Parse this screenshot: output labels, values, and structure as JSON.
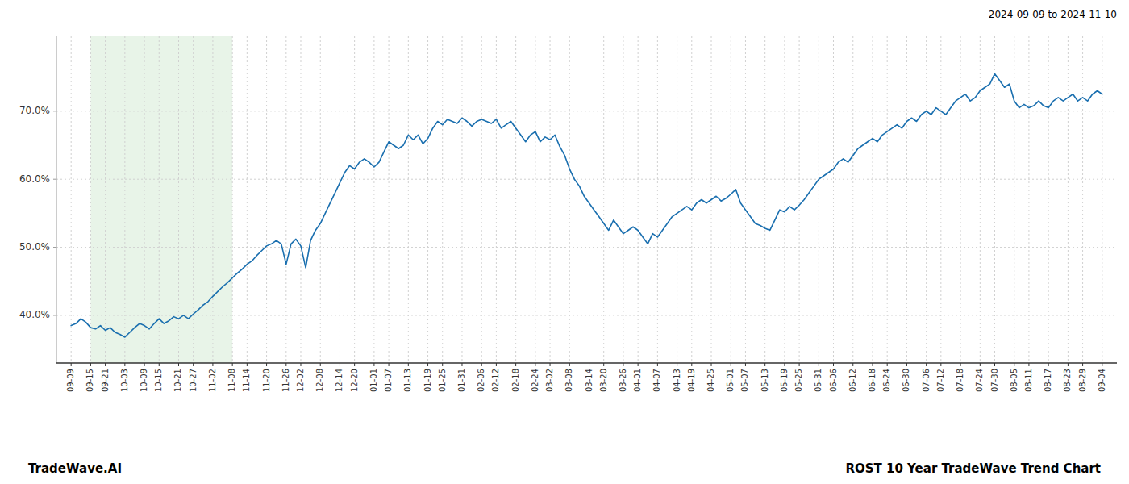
{
  "chart_data": {
    "type": "line",
    "subtitle": "2024-09-09 to 2024-11-10",
    "annotations": [
      "TradeWave.AI",
      "ROST 10 Year TradeWave Trend Chart"
    ],
    "color": "#1a6faf",
    "grid": true,
    "ylim": [
      33.0,
      81.0
    ],
    "yticks": [
      {
        "value": 40.0,
        "label": "40.0%"
      },
      {
        "value": 50.0,
        "label": "50.0%"
      },
      {
        "value": 60.0,
        "label": "60.0%"
      },
      {
        "value": 70.0,
        "label": "70.0%"
      }
    ],
    "highlight": {
      "start": "09-15",
      "end": "11-08",
      "color": "#d8ecd8"
    },
    "categories": [
      "09-09",
      null,
      null,
      null,
      "09-15",
      null,
      null,
      "09-21",
      null,
      null,
      null,
      "10-03",
      null,
      null,
      null,
      "10-09",
      null,
      null,
      "10-15",
      null,
      null,
      null,
      "10-21",
      null,
      null,
      "10-27",
      null,
      null,
      null,
      "11-02",
      null,
      null,
      null,
      "11-08",
      null,
      null,
      "11-14",
      null,
      null,
      null,
      "11-20",
      null,
      null,
      null,
      "11-26",
      null,
      null,
      "12-02",
      null,
      null,
      null,
      "12-08",
      null,
      null,
      null,
      "12-14",
      null,
      null,
      "12-20",
      null,
      null,
      null,
      "01-01",
      null,
      null,
      "01-07",
      null,
      null,
      null,
      "01-13",
      null,
      null,
      null,
      "01-19",
      null,
      null,
      "01-25",
      null,
      null,
      null,
      "01-31",
      null,
      null,
      null,
      "02-06",
      null,
      null,
      "02-12",
      null,
      null,
      null,
      "02-18",
      null,
      null,
      null,
      "02-24",
      null,
      null,
      "03-02",
      null,
      null,
      null,
      "03-08",
      null,
      null,
      null,
      "03-14",
      null,
      null,
      "03-20",
      null,
      null,
      null,
      "03-26",
      null,
      null,
      "04-01",
      null,
      null,
      null,
      "04-07",
      null,
      null,
      null,
      "04-13",
      null,
      null,
      "04-19",
      null,
      null,
      null,
      "04-25",
      null,
      null,
      null,
      "05-01",
      null,
      null,
      "05-07",
      null,
      null,
      null,
      "05-13",
      null,
      null,
      null,
      "05-19",
      null,
      null,
      "05-25",
      null,
      null,
      null,
      "05-31",
      null,
      null,
      "06-06",
      null,
      null,
      null,
      "06-12",
      null,
      null,
      null,
      "06-18",
      null,
      null,
      "06-24",
      null,
      null,
      null,
      "06-30",
      null,
      null,
      null,
      "07-06",
      null,
      null,
      "07-12",
      null,
      null,
      null,
      "07-18",
      null,
      null,
      null,
      "07-24",
      null,
      null,
      "07-30",
      null,
      null,
      null,
      "08-05",
      null,
      null,
      "08-11",
      null,
      null,
      null,
      "08-17",
      null,
      null,
      null,
      "08-23",
      null,
      null,
      "08-29",
      null,
      null,
      null,
      "09-04"
    ],
    "values": [
      38.5,
      38.8,
      39.5,
      39.0,
      38.2,
      38.0,
      38.5,
      37.8,
      38.2,
      37.5,
      37.2,
      36.8,
      37.5,
      38.2,
      38.8,
      38.5,
      38.0,
      38.8,
      39.5,
      38.8,
      39.2,
      39.8,
      39.5,
      40.0,
      39.5,
      40.2,
      40.8,
      41.5,
      42.0,
      42.8,
      43.5,
      44.2,
      44.8,
      45.5,
      46.2,
      46.8,
      47.5,
      48.0,
      48.8,
      49.5,
      50.2,
      50.5,
      51.0,
      50.5,
      47.5,
      50.5,
      51.2,
      50.2,
      47.0,
      51.0,
      52.5,
      53.5,
      55.0,
      56.5,
      58.0,
      59.5,
      61.0,
      62.0,
      61.5,
      62.5,
      63.0,
      62.5,
      61.8,
      62.5,
      64.0,
      65.5,
      65.0,
      64.5,
      65.0,
      66.5,
      65.8,
      66.5,
      65.2,
      66.0,
      67.5,
      68.5,
      68.0,
      68.8,
      68.5,
      68.2,
      69.0,
      68.5,
      67.8,
      68.5,
      68.8,
      68.5,
      68.2,
      68.8,
      67.5,
      68.0,
      68.5,
      67.5,
      66.5,
      65.5,
      66.5,
      67.0,
      65.5,
      66.2,
      65.8,
      66.5,
      64.8,
      63.5,
      61.5,
      60.0,
      59.0,
      57.5,
      56.5,
      55.5,
      54.5,
      53.5,
      52.5,
      54.0,
      53.0,
      52.0,
      52.5,
      53.0,
      52.5,
      51.5,
      50.5,
      52.0,
      51.5,
      52.5,
      53.5,
      54.5,
      55.0,
      55.5,
      56.0,
      55.5,
      56.5,
      57.0,
      56.5,
      57.0,
      57.5,
      56.8,
      57.2,
      57.8,
      58.5,
      56.5,
      55.5,
      54.5,
      53.5,
      53.2,
      52.8,
      52.5,
      54.0,
      55.5,
      55.2,
      56.0,
      55.5,
      56.2,
      57.0,
      58.0,
      59.0,
      60.0,
      60.5,
      61.0,
      61.5,
      62.5,
      63.0,
      62.5,
      63.5,
      64.5,
      65.0,
      65.5,
      66.0,
      65.5,
      66.5,
      67.0,
      67.5,
      68.0,
      67.5,
      68.5,
      69.0,
      68.5,
      69.5,
      70.0,
      69.5,
      70.5,
      70.0,
      69.5,
      70.5,
      71.5,
      72.0,
      72.5,
      71.5,
      72.0,
      73.0,
      73.5,
      74.0,
      75.5,
      74.5,
      73.5,
      74.0,
      71.5,
      70.5,
      71.0,
      70.5,
      70.8,
      71.5,
      70.8,
      70.5,
      71.5,
      72.0,
      71.5,
      72.0,
      72.5,
      71.5,
      72.0,
      71.5,
      72.5,
      73.0,
      72.5
    ]
  }
}
